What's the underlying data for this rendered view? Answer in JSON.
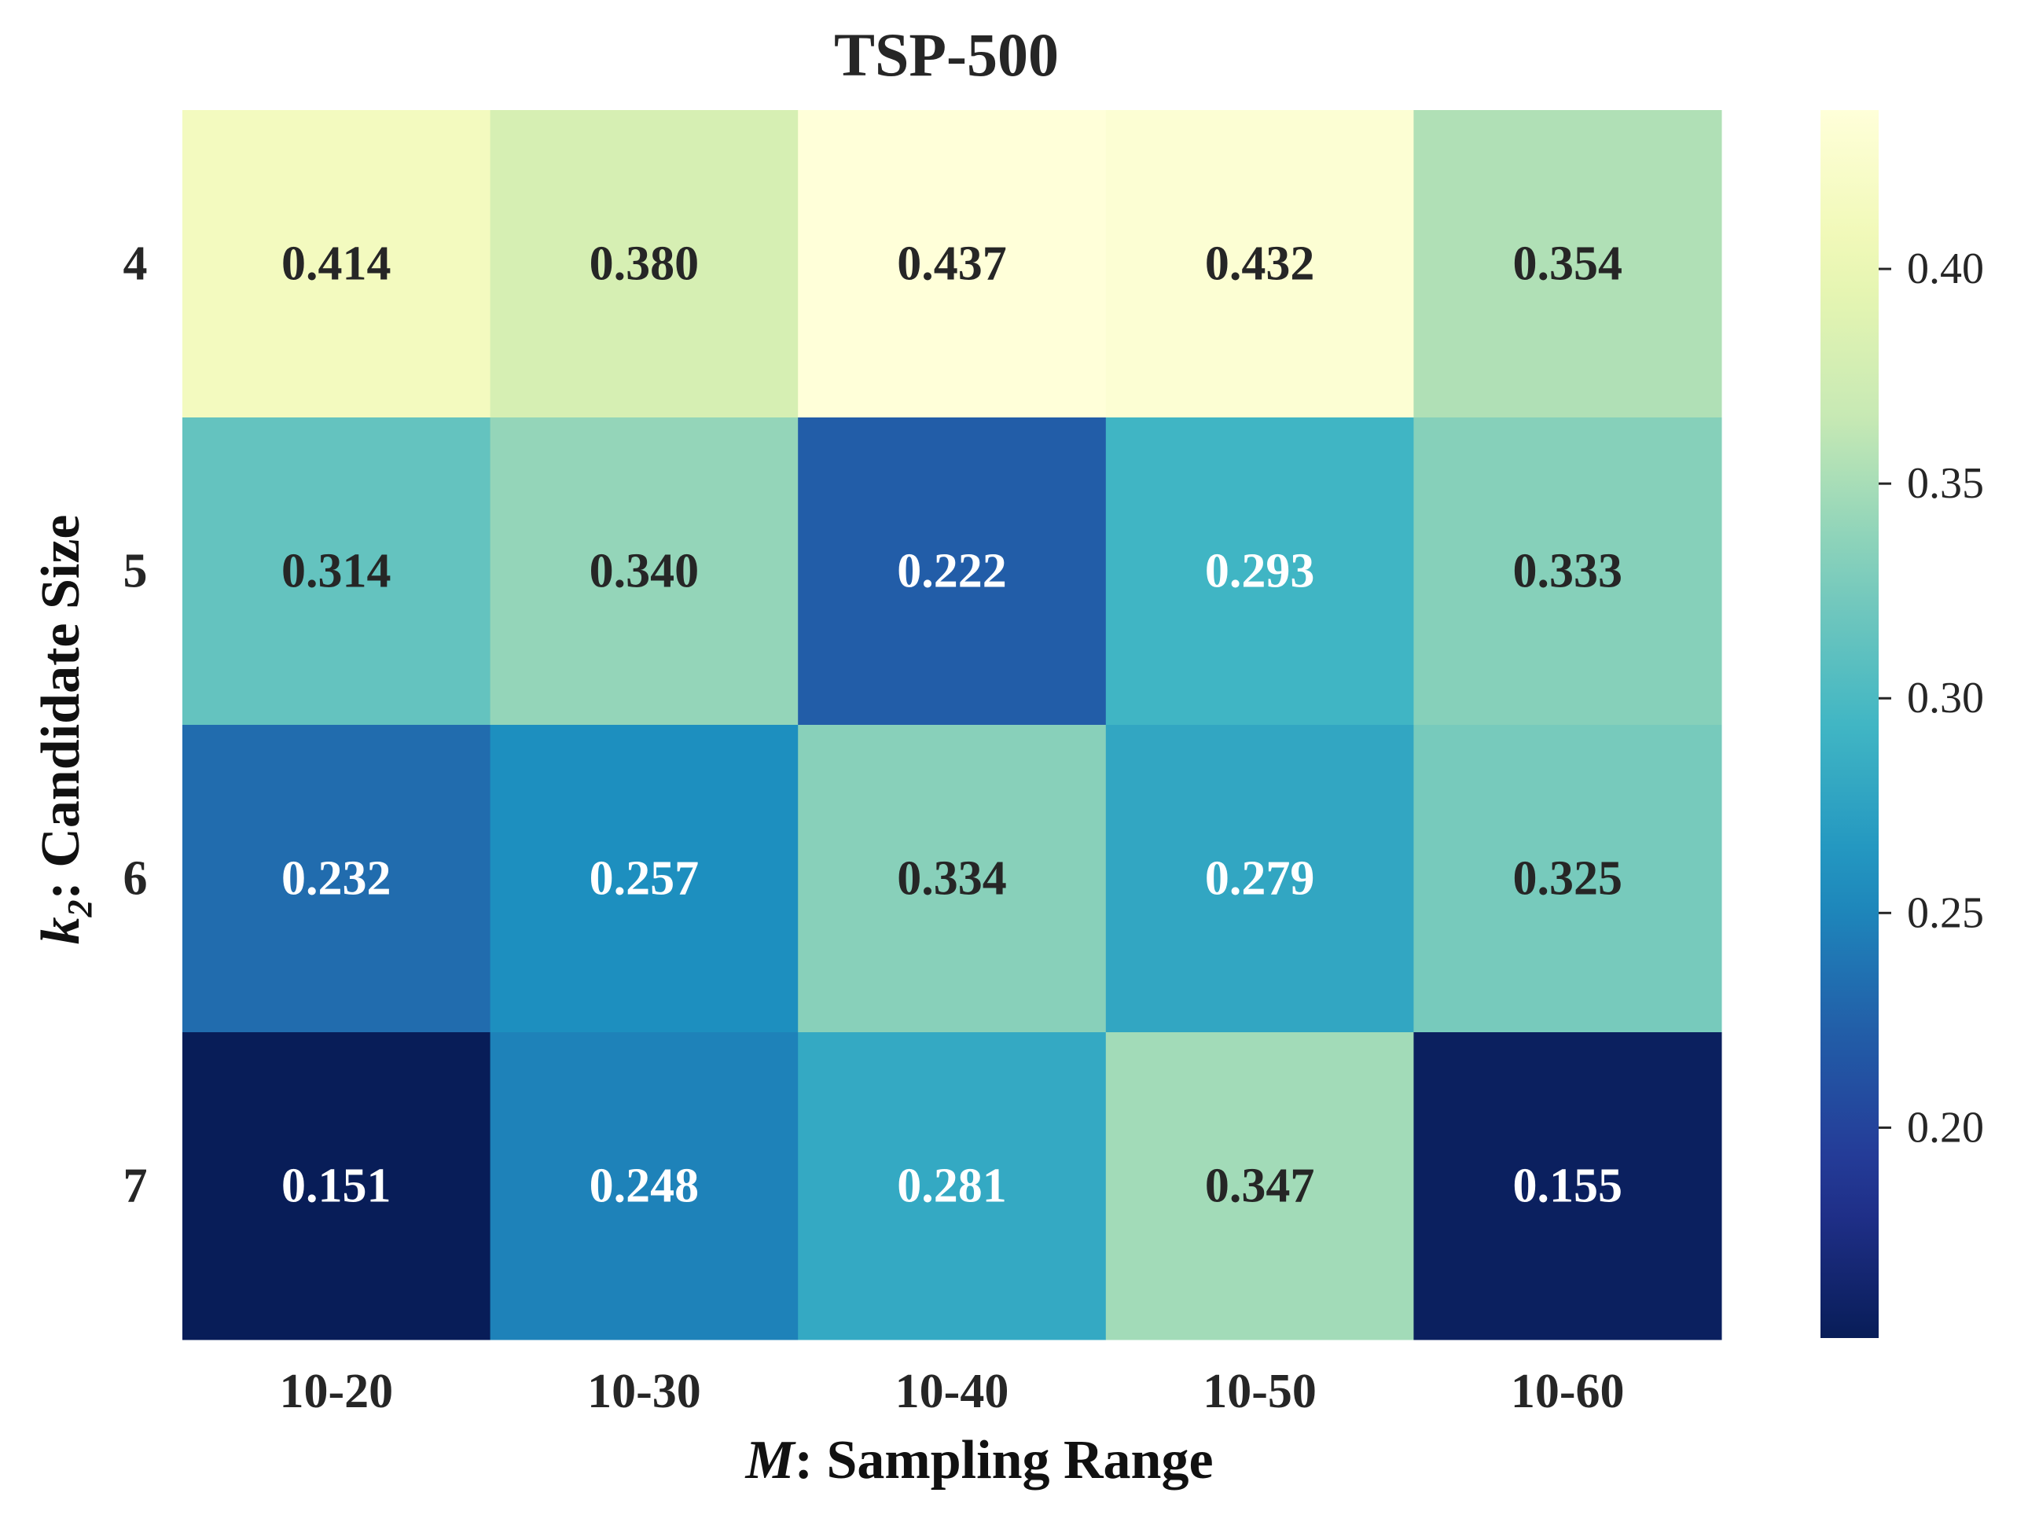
{
  "chart_data": {
    "type": "heatmap",
    "title": "TSP-500",
    "xlabel_var": "M",
    "xlabel_text": ": Sampling Range",
    "ylabel_var": "k",
    "ylabel_sub": "2",
    "ylabel_text": ": Candidate Size",
    "x_categories": [
      "10-20",
      "10-30",
      "10-40",
      "10-50",
      "10-60"
    ],
    "y_categories": [
      "4",
      "5",
      "6",
      "7"
    ],
    "values": [
      [
        0.414,
        0.38,
        0.437,
        0.432,
        0.354
      ],
      [
        0.314,
        0.34,
        0.222,
        0.293,
        0.333
      ],
      [
        0.232,
        0.257,
        0.334,
        0.279,
        0.325
      ],
      [
        0.151,
        0.248,
        0.281,
        0.347,
        0.155
      ]
    ],
    "value_labels": [
      [
        "0.414",
        "0.380",
        "0.437",
        "0.432",
        "0.354"
      ],
      [
        "0.314",
        "0.340",
        "0.222",
        "0.293",
        "0.333"
      ],
      [
        "0.232",
        "0.257",
        "0.334",
        "0.279",
        "0.325"
      ],
      [
        "0.151",
        "0.248",
        "0.281",
        "0.347",
        "0.155"
      ]
    ],
    "colormap": "YlGnBu",
    "colorbar": {
      "range": [
        0.151,
        0.437
      ],
      "ticks": [
        0.2,
        0.25,
        0.3,
        0.35,
        0.4
      ],
      "tick_labels": [
        "0.20",
        "0.25",
        "0.30",
        "0.35",
        "0.40"
      ],
      "placement": "right"
    },
    "grid": false,
    "text_colors": {
      "dark": "#262626",
      "light": "#ffffff"
    }
  }
}
